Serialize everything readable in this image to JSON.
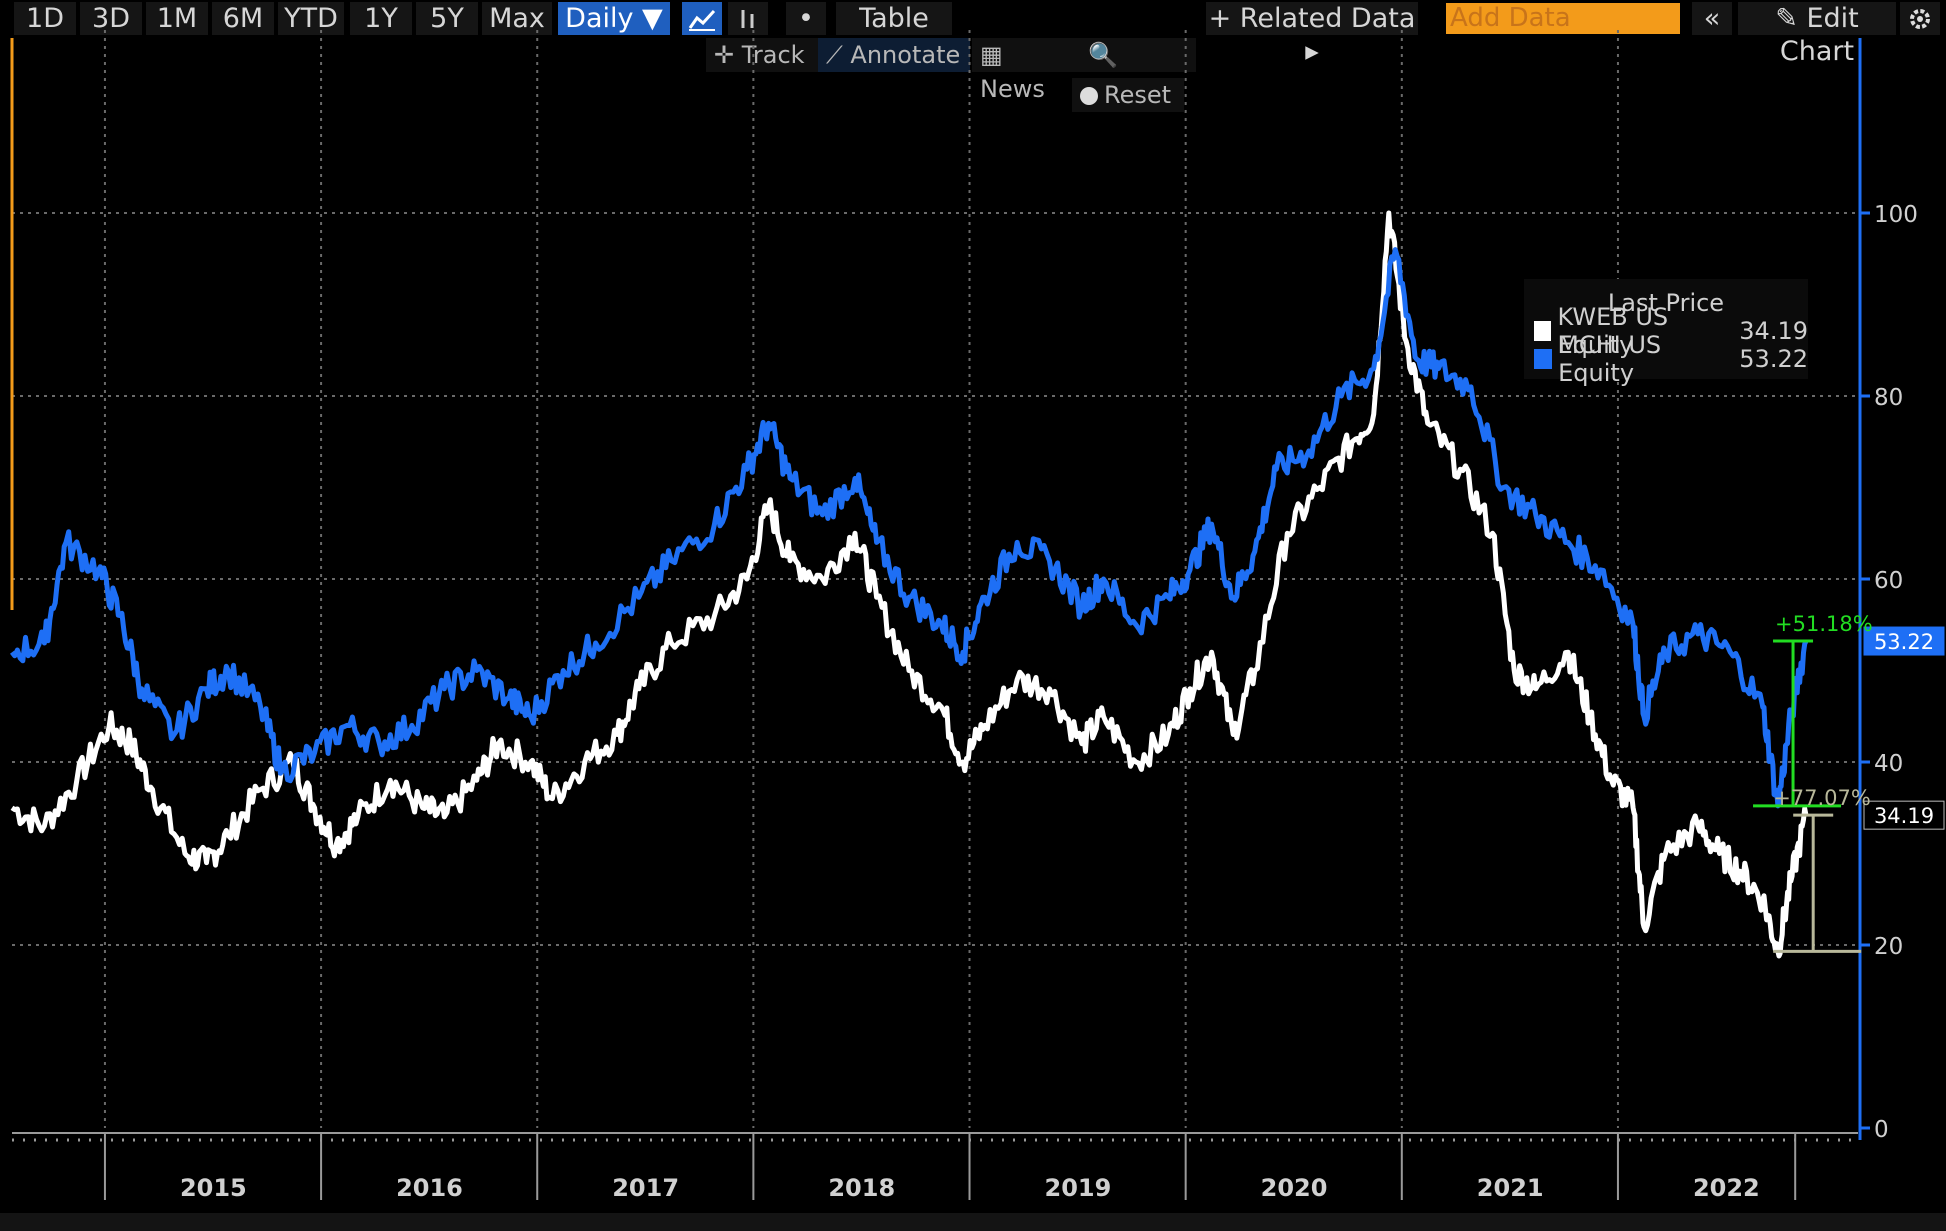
{
  "toolbar": {
    "periods": [
      "1D",
      "3D",
      "1M",
      "6M",
      "YTD",
      "1Y",
      "5Y",
      "Max"
    ],
    "frequency": "Daily ▼",
    "line_icon": "line-chart-icon",
    "bar_icon": "bar-chart-icon",
    "dot": "•",
    "table": "Table",
    "related_data": "+ Related Data ▸",
    "add_data_placeholder": "Add Data",
    "collapse": "«",
    "edit_chart": "✎ Edit Chart",
    "settings_icon": "gear-icon"
  },
  "subtools": {
    "track": "✛ Track",
    "annotate": "⟋ Annotate",
    "news": "▦ News",
    "zoom": "🔍 Zoom",
    "reset": "Reset"
  },
  "legend": {
    "title": "Last Price",
    "items": [
      {
        "label": "KWEB US Equity",
        "value": "34.19",
        "color": "#ffffff"
      },
      {
        "label": "MCHI US Equity",
        "value": "53.22",
        "color": "#1e6ff5"
      }
    ]
  },
  "colors": {
    "background": "#000000",
    "kweb": "#ffffff",
    "mchi": "#1e6ff5",
    "axis": "#1e6ff5",
    "accent_orange": "#f39b1a",
    "gain_green": "#22dd22",
    "gain_tan": "#b8b89a"
  },
  "chart_data": {
    "type": "line",
    "x_ticks": [
      "2015",
      "2016",
      "2017",
      "2018",
      "2019",
      "2020",
      "2021",
      "2022"
    ],
    "y_ticks": [
      0,
      20,
      40,
      60,
      80,
      100
    ],
    "ylim": [
      0,
      120
    ],
    "xlim": [
      2014.55,
      2022.85
    ],
    "grid": true,
    "legend_position": "top-right",
    "series": [
      {
        "name": "KWEB US Equity",
        "color": "#ffffff",
        "last_value": "34.19",
        "points": [
          [
            2014.55,
            35
          ],
          [
            2014.7,
            33
          ],
          [
            2014.85,
            38
          ],
          [
            2015.0,
            44
          ],
          [
            2015.1,
            42
          ],
          [
            2015.2,
            37
          ],
          [
            2015.35,
            30
          ],
          [
            2015.45,
            29
          ],
          [
            2015.55,
            32
          ],
          [
            2015.7,
            37
          ],
          [
            2015.85,
            40
          ],
          [
            2015.95,
            35
          ],
          [
            2016.05,
            31
          ],
          [
            2016.15,
            34
          ],
          [
            2016.3,
            38
          ],
          [
            2016.45,
            35
          ],
          [
            2016.55,
            34
          ],
          [
            2016.7,
            38
          ],
          [
            2016.8,
            42
          ],
          [
            2016.95,
            40
          ],
          [
            2017.05,
            36
          ],
          [
            2017.2,
            40
          ],
          [
            2017.35,
            43
          ],
          [
            2017.45,
            48
          ],
          [
            2017.6,
            53
          ],
          [
            2017.8,
            56
          ],
          [
            2017.95,
            60
          ],
          [
            2018.05,
            68
          ],
          [
            2018.15,
            62
          ],
          [
            2018.3,
            60
          ],
          [
            2018.45,
            65
          ],
          [
            2018.55,
            58
          ],
          [
            2018.7,
            50
          ],
          [
            2018.85,
            46
          ],
          [
            2018.95,
            40
          ],
          [
            2019.05,
            44
          ],
          [
            2019.2,
            49
          ],
          [
            2019.35,
            48
          ],
          [
            2019.5,
            42
          ],
          [
            2019.6,
            45
          ],
          [
            2019.75,
            40
          ],
          [
            2019.9,
            43
          ],
          [
            2020.0,
            48
          ],
          [
            2020.1,
            52
          ],
          [
            2020.2,
            43
          ],
          [
            2020.3,
            50
          ],
          [
            2020.45,
            65
          ],
          [
            2020.6,
            70
          ],
          [
            2020.75,
            75
          ],
          [
            2020.85,
            78
          ],
          [
            2020.92,
            100
          ],
          [
            2021.0,
            86
          ],
          [
            2021.1,
            77
          ],
          [
            2021.25,
            72
          ],
          [
            2021.4,
            65
          ],
          [
            2021.5,
            50
          ],
          [
            2021.6,
            48
          ],
          [
            2021.75,
            52
          ],
          [
            2021.85,
            45
          ],
          [
            2021.95,
            38
          ],
          [
            2022.05,
            35
          ],
          [
            2022.1,
            22
          ],
          [
            2022.2,
            30
          ],
          [
            2022.35,
            33
          ],
          [
            2022.45,
            30
          ],
          [
            2022.55,
            28
          ],
          [
            2022.65,
            25
          ],
          [
            2022.72,
            19.3
          ],
          [
            2022.78,
            27
          ],
          [
            2022.85,
            34.19
          ]
        ]
      },
      {
        "name": "MCHI US Equity",
        "color": "#1e6ff5",
        "last_value": "53.22",
        "points": [
          [
            2014.55,
            52
          ],
          [
            2014.7,
            53
          ],
          [
            2014.8,
            64
          ],
          [
            2014.95,
            61
          ],
          [
            2015.05,
            56
          ],
          [
            2015.15,
            48
          ],
          [
            2015.3,
            43
          ],
          [
            2015.45,
            48
          ],
          [
            2015.55,
            50
          ],
          [
            2015.7,
            46
          ],
          [
            2015.8,
            39
          ],
          [
            2015.95,
            41
          ],
          [
            2016.1,
            44
          ],
          [
            2016.25,
            42
          ],
          [
            2016.4,
            44
          ],
          [
            2016.55,
            48
          ],
          [
            2016.7,
            50
          ],
          [
            2016.85,
            47
          ],
          [
            2016.95,
            45
          ],
          [
            2017.1,
            50
          ],
          [
            2017.25,
            53
          ],
          [
            2017.45,
            58
          ],
          [
            2017.6,
            62
          ],
          [
            2017.8,
            66
          ],
          [
            2017.95,
            72
          ],
          [
            2018.05,
            77
          ],
          [
            2018.15,
            71
          ],
          [
            2018.3,
            67
          ],
          [
            2018.45,
            71
          ],
          [
            2018.55,
            64
          ],
          [
            2018.7,
            58
          ],
          [
            2018.85,
            55
          ],
          [
            2018.95,
            52
          ],
          [
            2019.05,
            58
          ],
          [
            2019.2,
            64
          ],
          [
            2019.35,
            62
          ],
          [
            2019.5,
            57
          ],
          [
            2019.6,
            60
          ],
          [
            2019.75,
            55
          ],
          [
            2019.9,
            58
          ],
          [
            2020.0,
            61
          ],
          [
            2020.1,
            66
          ],
          [
            2020.2,
            58
          ],
          [
            2020.3,
            63
          ],
          [
            2020.4,
            72
          ],
          [
            2020.55,
            74
          ],
          [
            2020.7,
            80
          ],
          [
            2020.85,
            83
          ],
          [
            2020.95,
            96
          ],
          [
            2021.05,
            84
          ],
          [
            2021.15,
            83
          ],
          [
            2021.3,
            81
          ],
          [
            2021.45,
            70
          ],
          [
            2021.6,
            67
          ],
          [
            2021.75,
            64
          ],
          [
            2021.9,
            61
          ],
          [
            2022.05,
            55
          ],
          [
            2022.1,
            45
          ],
          [
            2022.2,
            52
          ],
          [
            2022.35,
            54
          ],
          [
            2022.5,
            52
          ],
          [
            2022.65,
            46
          ],
          [
            2022.72,
            35.2
          ],
          [
            2022.78,
            45
          ],
          [
            2022.85,
            53.22
          ]
        ]
      }
    ],
    "annotations": [
      {
        "text": "+51.18%",
        "color": "#22dd22",
        "from": 35.2,
        "to": 53.22,
        "x": 2022.79
      },
      {
        "text": "+77.07%",
        "color": "#b8b89a",
        "from": 19.3,
        "to": 34.19,
        "x": 2022.8
      }
    ]
  }
}
